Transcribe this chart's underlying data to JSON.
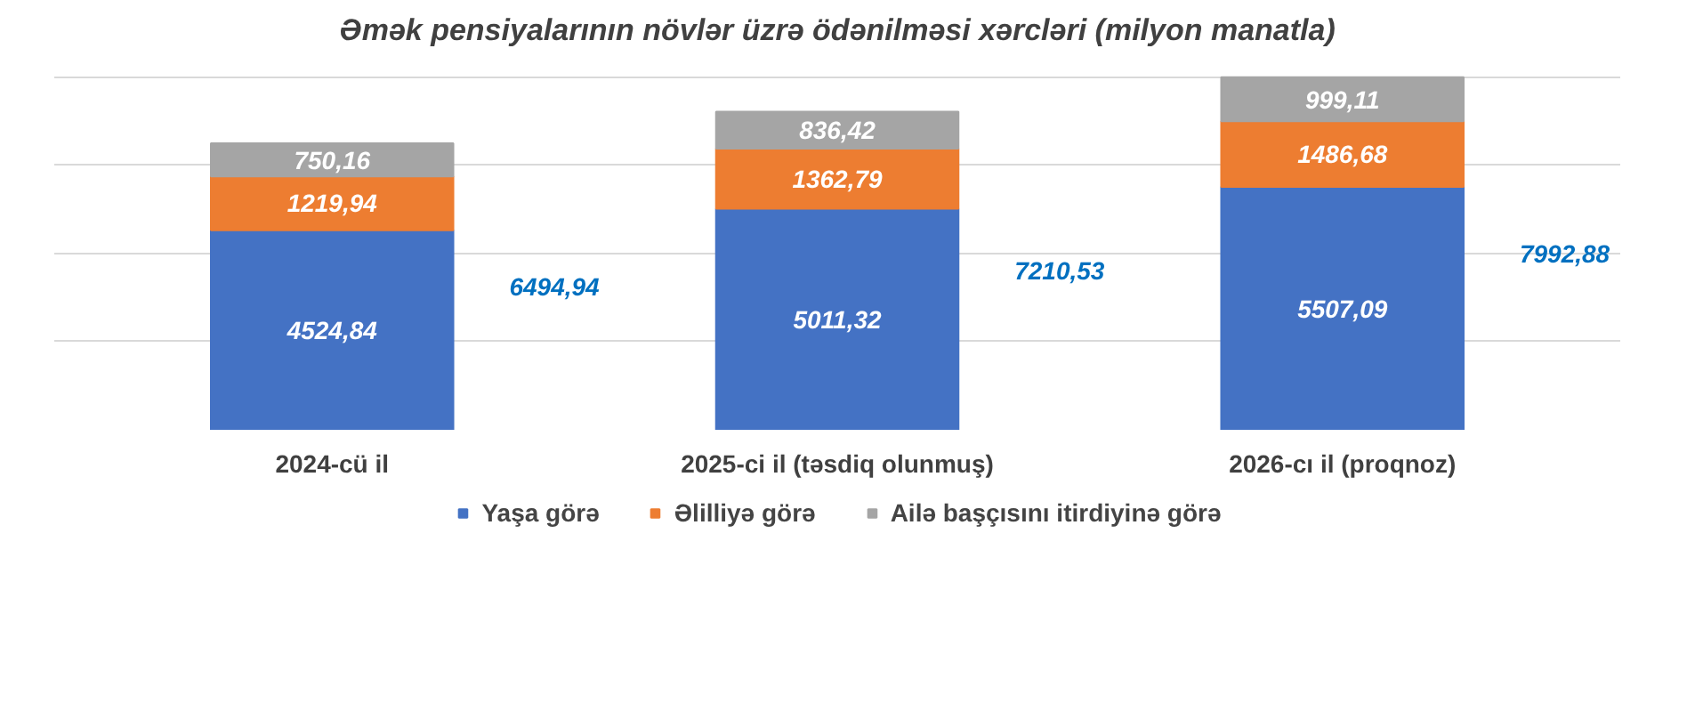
{
  "chart_data": {
    "type": "bar",
    "stacked": true,
    "title": "Əmək pensiyalarının növlər üzrə ödənilməsi xərcləri (milyon manatla)",
    "categories": [
      "2024-cü il",
      "2025-ci il (təsdiq olunmuş)",
      "2026-cı il (proqnoz)"
    ],
    "series": [
      {
        "name": "Yaşa görə",
        "color": "#4472c4",
        "values": [
          4524.84,
          5011.32,
          5507.09
        ],
        "value_labels": [
          "4524,84",
          "5011,32",
          "5507,09"
        ]
      },
      {
        "name": "Əlilliyə görə",
        "color": "#ed7d31",
        "values": [
          1219.94,
          1362.79,
          1486.68
        ],
        "value_labels": [
          "1219,94",
          "1362,79",
          "1486,68"
        ]
      },
      {
        "name": "Ailə başçısını itirdiyinə görə",
        "color": "#a5a5a5",
        "values": [
          750.16,
          836.42,
          999.11
        ],
        "value_labels": [
          "750,16",
          "836,42",
          "999,11"
        ]
      }
    ],
    "totals": [
      "6494,94",
      "7210,53",
      "7992,88"
    ],
    "grid": "y",
    "legend": "bottom",
    "tick_labels": "x"
  }
}
